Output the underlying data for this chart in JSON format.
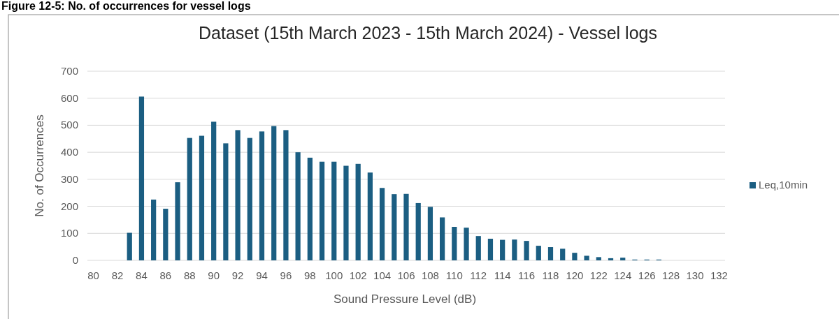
{
  "chart_data": {
    "type": "bar",
    "title": "Dataset (15th March 2023 - 15th March 2024) - Vessel logs",
    "xlabel": "Sound Pressure Level (dB)",
    "ylabel": "No. of Occurrences",
    "annotations": [
      "Figure 12-5: No. of occurrences for vessel logs"
    ],
    "categories": [
      "80",
      null,
      "82",
      null,
      "84",
      null,
      "86",
      null,
      "88",
      null,
      "90",
      null,
      "92",
      null,
      "94",
      null,
      "96",
      null,
      "98",
      null,
      "100",
      null,
      "102",
      null,
      "104",
      null,
      "106",
      null,
      "108",
      null,
      "110",
      null,
      "112",
      null,
      "114",
      null,
      "116",
      null,
      "118",
      null,
      "120",
      null,
      "122",
      null,
      "124",
      null,
      "126",
      null,
      "128",
      null,
      "130",
      null,
      "132"
    ],
    "series": [
      {
        "name": "Leq,10min",
        "color": "#1b5e82",
        "values": [
          0,
          0,
          0,
          102,
          606,
          225,
          191,
          289,
          453,
          461,
          513,
          433,
          482,
          453,
          477,
          497,
          482,
          400,
          380,
          365,
          365,
          350,
          357,
          325,
          268,
          245,
          246,
          212,
          198,
          159,
          124,
          121,
          90,
          80,
          76,
          77,
          72,
          54,
          49,
          43,
          28,
          17,
          12,
          8,
          10,
          3,
          3,
          3,
          0,
          0,
          0,
          0,
          0
        ]
      }
    ],
    "ylim": [
      0,
      700
    ],
    "yticks": [
      0,
      100,
      200,
      300,
      400,
      500,
      600,
      700
    ],
    "grid": "y",
    "legend": "right"
  }
}
